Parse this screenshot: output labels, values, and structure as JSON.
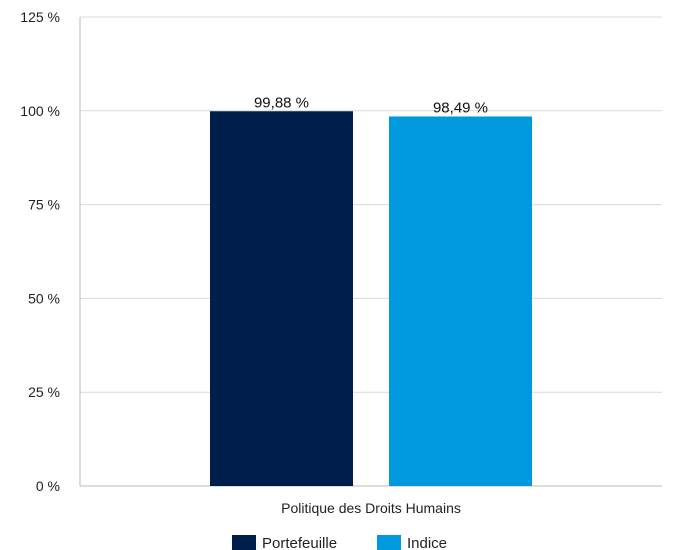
{
  "chart_data": {
    "type": "bar",
    "categories": [
      "Politique des Droits Humains"
    ],
    "series": [
      {
        "name": "Portefeuille",
        "values": [
          99.88
        ],
        "color": "#001e4b",
        "label": "99,88 %"
      },
      {
        "name": "Indice",
        "values": [
          98.49
        ],
        "color": "#0099dd",
        "label": "98,49 %"
      }
    ],
    "ylim": [
      0,
      125
    ],
    "yticks": [
      {
        "value": 0,
        "label": "0 %"
      },
      {
        "value": 25,
        "label": "25 %"
      },
      {
        "value": 50,
        "label": "50 %"
      },
      {
        "value": 75,
        "label": "75 %"
      },
      {
        "value": 100,
        "label": "100 %"
      },
      {
        "value": 125,
        "label": "125 %"
      }
    ],
    "grid": true,
    "legend_position": "bottom",
    "title": "",
    "xlabel": "",
    "ylabel": ""
  }
}
